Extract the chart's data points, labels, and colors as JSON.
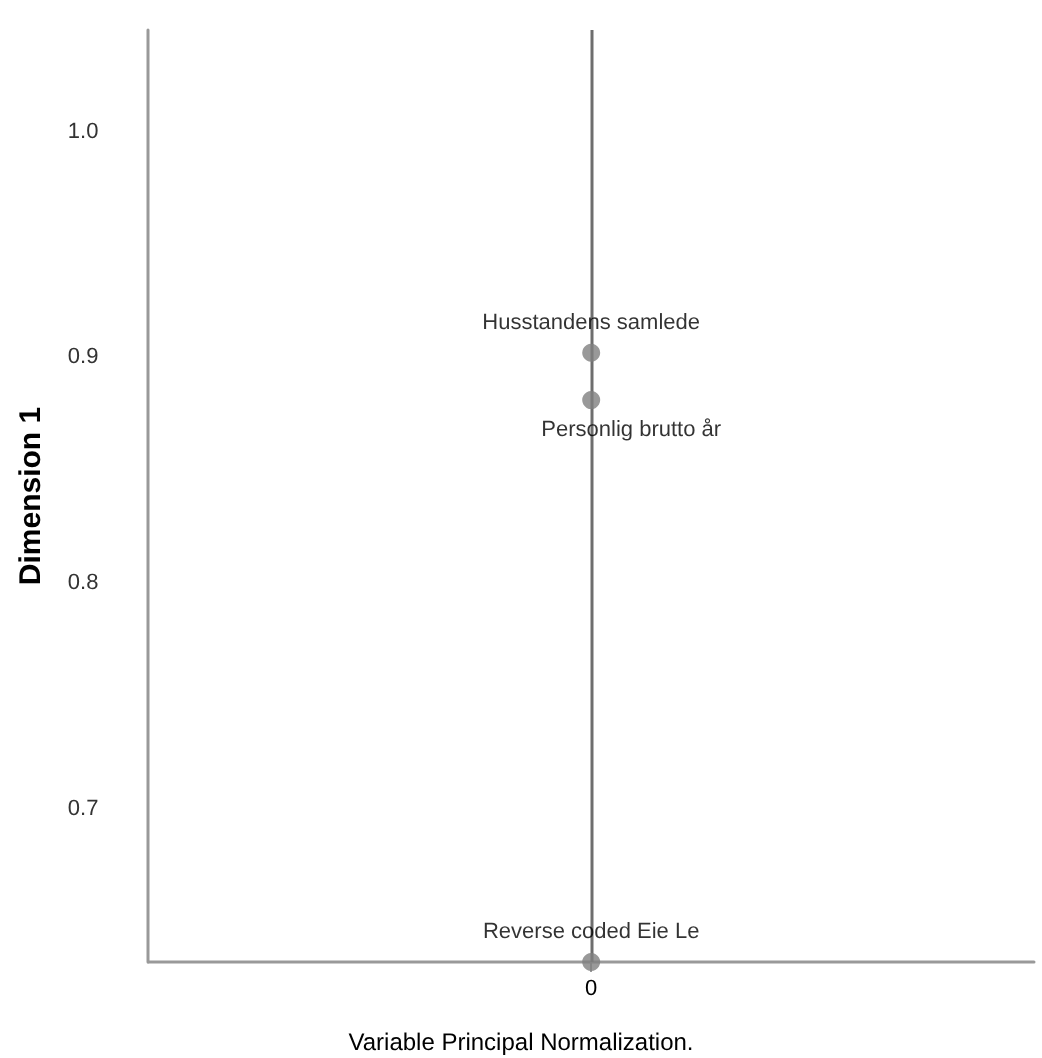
{
  "chart_data": {
    "type": "scatter",
    "ylabel": "Dimension 1",
    "annotations": [
      "Variable Principal Normalization."
    ],
    "categories": [
      "0"
    ],
    "series": [
      {
        "color": "#808080",
        "values": [
          0.902
        ],
        "value_labels": [
          "Husstandens samlede"
        ]
      },
      {
        "color": "#808080",
        "values": [
          0.881
        ],
        "value_labels": [
          "Personlig brutto år"
        ]
      },
      {
        "color": "#808080",
        "values": [
          0.632
        ],
        "value_labels": [
          "Reverse coded Eie Le"
        ]
      }
    ],
    "marker": "circle",
    "ylim": [
      0.632,
      1.045
    ],
    "yticks": [
      0.7,
      0.8,
      0.9,
      {
        "value": 1.0,
        "label": "1.0"
      }
    ],
    "ref_lines": [
      {
        "axis": "x",
        "value": "0",
        "color": "#6e6e6e"
      }
    ],
    "grid": false
  }
}
